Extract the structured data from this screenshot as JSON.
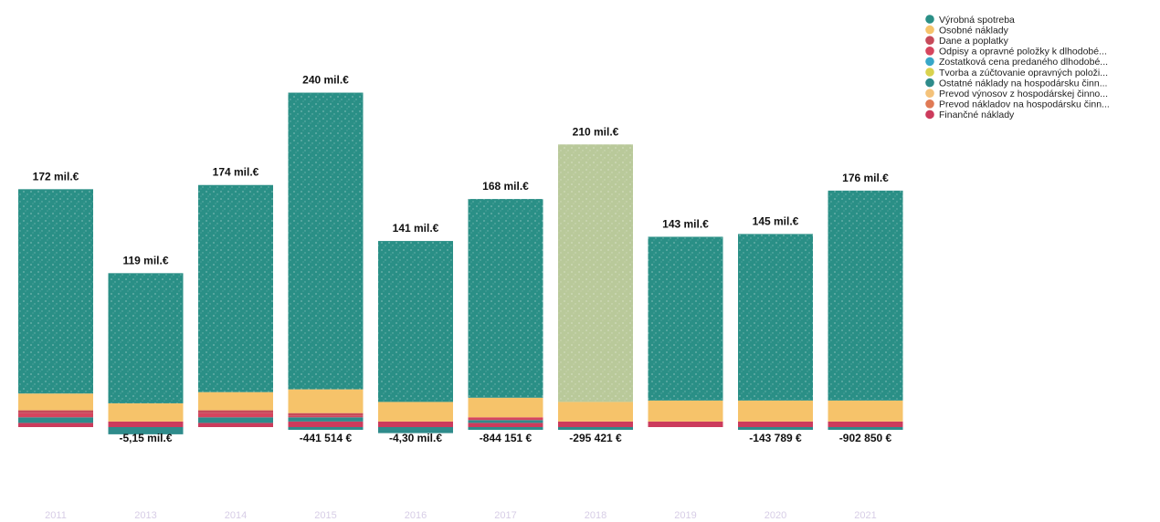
{
  "chart_data": {
    "type": "bar",
    "stacked": true,
    "categories": [
      "2011",
      "2013",
      "2014",
      "2015",
      "2016",
      "2017",
      "2018",
      "2019",
      "2020",
      "2021"
    ],
    "total_labels": [
      "172 mil.€",
      "119 mil.€",
      "174 mil.€",
      "240 mil.€",
      "141 mil.€",
      "168 mil.€",
      "210 mil.€",
      "143 mil.€",
      "145 mil.€",
      "176 mil.€"
    ],
    "negative_labels": [
      "",
      "-5,15 mil.€",
      "",
      "-441 514 €",
      "-4,30 mil.€",
      "-844 151 €",
      "-295 421 €",
      "",
      "-143 789 €",
      "-902 850 €"
    ],
    "legend": {
      "placement": "top-right",
      "entries": [
        {
          "label": "Výrobná spotreba",
          "color": "#2a8f86"
        },
        {
          "label": "Osobné náklady",
          "color": "#f6c36a"
        },
        {
          "label": "Dane a poplatky",
          "color": "#c64a5a"
        },
        {
          "label": "Odpisy a opravné položky k dlhodobé...",
          "color": "#d6455e"
        },
        {
          "label": "Zostatková cena predaného dlhodobé...",
          "color": "#37a7c8"
        },
        {
          "label": "Tvorba a zúčtovanie opravných položi...",
          "color": "#d9d24e"
        },
        {
          "label": "Ostatné náklady na hospodársku činn...",
          "color": "#2e8b8b"
        },
        {
          "label": "Prevod výnosov z hospodárskej činno...",
          "color": "#f4c27a"
        },
        {
          "label": "Prevod nákladov na hospodársku činn...",
          "color": "#e07a55"
        },
        {
          "label": "Finančné náklady",
          "color": "#cc3b5c"
        }
      ]
    },
    "series": [
      {
        "name": "Výrobná spotreba",
        "values": [
          146,
          93,
          148,
          212,
          115,
          142,
          184,
          117,
          119,
          150
        ]
      },
      {
        "name": "Osobné náklady",
        "values": [
          12,
          13,
          13,
          17,
          14,
          14,
          14,
          15,
          15,
          15
        ]
      },
      {
        "name": "Dane a poplatky",
        "values": [
          2,
          0,
          2,
          2,
          0,
          0,
          0,
          0,
          0,
          0
        ]
      },
      {
        "name": "Odpisy a opravné položky k dlhodobé...",
        "values": [
          3,
          0,
          3,
          1,
          0,
          2,
          0,
          0,
          0,
          0
        ]
      },
      {
        "name": "Ostatné náklady na hospodársku činn...",
        "values": [
          4,
          0,
          4,
          3,
          0,
          2,
          0,
          0,
          0,
          0
        ]
      },
      {
        "name": "Finančné náklady",
        "values": [
          3,
          4,
          3,
          4,
          4,
          3,
          4,
          4,
          4,
          4
        ]
      }
    ],
    "negatives": [
      0,
      -5.15,
      0,
      -0.44,
      -4.3,
      -0.84,
      -0.3,
      0,
      -0.14,
      -0.9
    ],
    "ylim": [
      -8,
      250
    ],
    "grid": false,
    "special_color_year": "2018",
    "special_color": "#b9c99a",
    "xlabel": "",
    "ylabel": ""
  }
}
